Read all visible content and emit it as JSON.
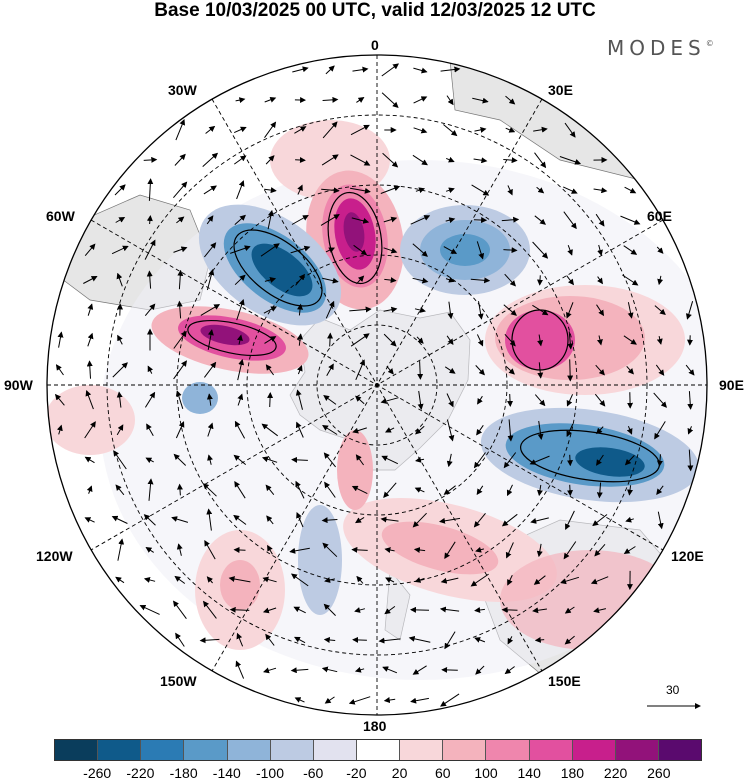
{
  "title": "Base 10/03/2025 00 UTC, valid 12/03/2025 12 UTC",
  "logo": "MODES",
  "logo_mark": "©",
  "meridian_labels": {
    "m0": "0",
    "m30e": "30E",
    "m60e": "60E",
    "m90e": "90E",
    "m120e": "120E",
    "m150e": "150E",
    "m180": "180",
    "m150w": "150W",
    "m120w": "120W",
    "m90w": "90W",
    "m60w": "60W",
    "m30w": "30W"
  },
  "reference_vector": "30",
  "colorbar": {
    "colors": [
      "#0a3d5c",
      "#0f5a8a",
      "#2b7bb4",
      "#5a9ac8",
      "#8fb4d9",
      "#bdcbe3",
      "#e2e2ef",
      "#ffffff",
      "#f8d7da",
      "#f4b3bd",
      "#ef86ad",
      "#e2509f",
      "#c81f8c",
      "#92127a",
      "#5a0a6e"
    ],
    "ticks": [
      "-260",
      "-220",
      "-180",
      "-140",
      "-100",
      "-60",
      "-20",
      "20",
      "60",
      "100",
      "140",
      "180",
      "220",
      "260"
    ]
  }
}
